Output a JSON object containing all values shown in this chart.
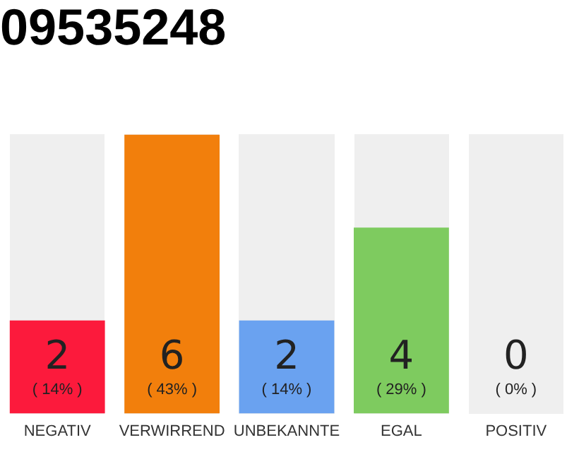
{
  "chart_data": {
    "type": "bar",
    "title": "09535248",
    "categories": [
      "NEGATIV",
      "VERWIRREND",
      "UNBEKANNTE",
      "EGAL",
      "POSITIV"
    ],
    "values": [
      2,
      6,
      2,
      4,
      0
    ],
    "colors": [
      "#fc1a3c",
      "#f27f0c",
      "#6aa2f0",
      "#7ecb5f",
      "#e0e0e0"
    ],
    "data_labels": true,
    "grid": false,
    "legend": false,
    "annotations": [
      "( 14% )",
      "( 43% )",
      "( 14% )",
      "( 29% )",
      "( 0% )"
    ]
  }
}
